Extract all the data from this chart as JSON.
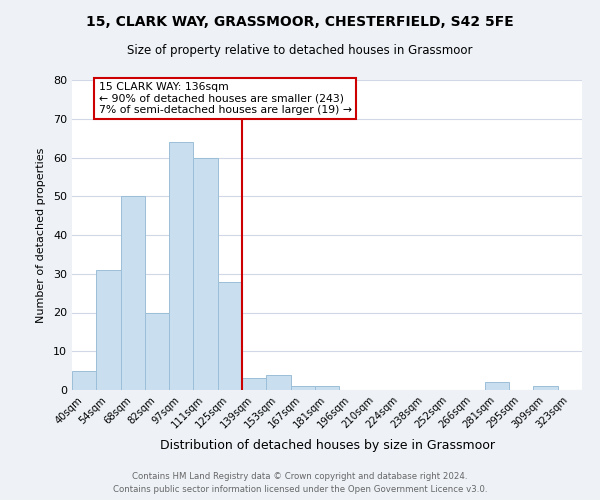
{
  "title": "15, CLARK WAY, GRASSMOOR, CHESTERFIELD, S42 5FE",
  "subtitle": "Size of property relative to detached houses in Grassmoor",
  "xlabel": "Distribution of detached houses by size in Grassmoor",
  "ylabel": "Number of detached properties",
  "bar_labels": [
    "40sqm",
    "54sqm",
    "68sqm",
    "82sqm",
    "97sqm",
    "111sqm",
    "125sqm",
    "139sqm",
    "153sqm",
    "167sqm",
    "181sqm",
    "196sqm",
    "210sqm",
    "224sqm",
    "238sqm",
    "252sqm",
    "266sqm",
    "281sqm",
    "295sqm",
    "309sqm",
    "323sqm"
  ],
  "bar_values": [
    5,
    31,
    50,
    20,
    64,
    60,
    28,
    3,
    4,
    1,
    1,
    0,
    0,
    0,
    0,
    0,
    0,
    2,
    0,
    1,
    0
  ],
  "bar_color": "#c9dff0",
  "bar_edge_color": "#9bbfd8",
  "vline_x": 7,
  "vline_color": "#cc0000",
  "annotation_title": "15 CLARK WAY: 136sqm",
  "annotation_line1": "← 90% of detached houses are smaller (243)",
  "annotation_line2": "7% of semi-detached houses are larger (19) →",
  "box_edge_color": "#cc0000",
  "ylim": [
    0,
    80
  ],
  "yticks": [
    0,
    10,
    20,
    30,
    40,
    50,
    60,
    70,
    80
  ],
  "footer1": "Contains HM Land Registry data © Crown copyright and database right 2024.",
  "footer2": "Contains public sector information licensed under the Open Government Licence v3.0.",
  "bg_color": "#eef2f7",
  "plot_bg_color": "#ffffff",
  "grid_color": "#d0d8e8"
}
